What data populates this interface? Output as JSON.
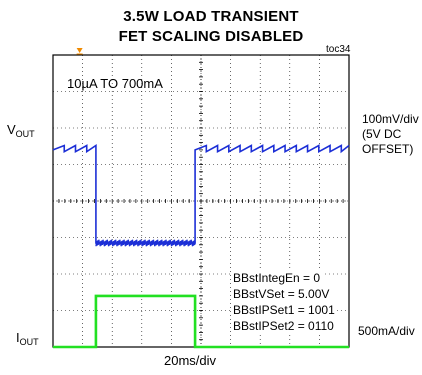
{
  "title_line1": "3.5W LOAD TRANSIENT",
  "title_line2": "FET SCALING DISABLED",
  "figure_tag": "toc34",
  "load_label": "10µA TO 700mA",
  "vout_label": "V",
  "vout_sub": "OUT",
  "iout_label": "I",
  "iout_sub": "OUT",
  "vout_scale": [
    "100mV/div",
    "(5V DC",
    "OFFSET)"
  ],
  "iout_scale": "500mA/div",
  "time_scale": "20ms/div",
  "settings": [
    "BBstIntegEn = 0",
    "BBstVSet = 5.00V",
    "BBstIPSet1 = 1001",
    "BBstIPSet2 = 0110"
  ],
  "colors": {
    "vout_trace": "#1c2fd6",
    "iout_trace": "#22e022",
    "trigger_marker": "#f08a00",
    "grid": "#000000"
  },
  "chart_data": {
    "type": "line",
    "x_unit": "time (20ms/div)",
    "x_divisions": 10,
    "y_divisions": 8,
    "series": [
      {
        "name": "VOUT",
        "color": "#1c2fd6",
        "x_div": [
          0.0,
          1.45,
          1.45,
          4.8,
          4.8,
          10.0
        ],
        "y_div": [
          5.4,
          5.4,
          2.85,
          2.85,
          5.4,
          5.4
        ],
        "note_shape": "sawtooth ripple at high level, noisy band at low level"
      },
      {
        "name": "IOUT",
        "color": "#22e022",
        "x_div": [
          0.0,
          1.45,
          1.45,
          4.8,
          4.8,
          10.0
        ],
        "y_div": [
          0.0,
          0.0,
          1.4,
          1.4,
          0.0,
          0.0
        ]
      }
    ]
  }
}
